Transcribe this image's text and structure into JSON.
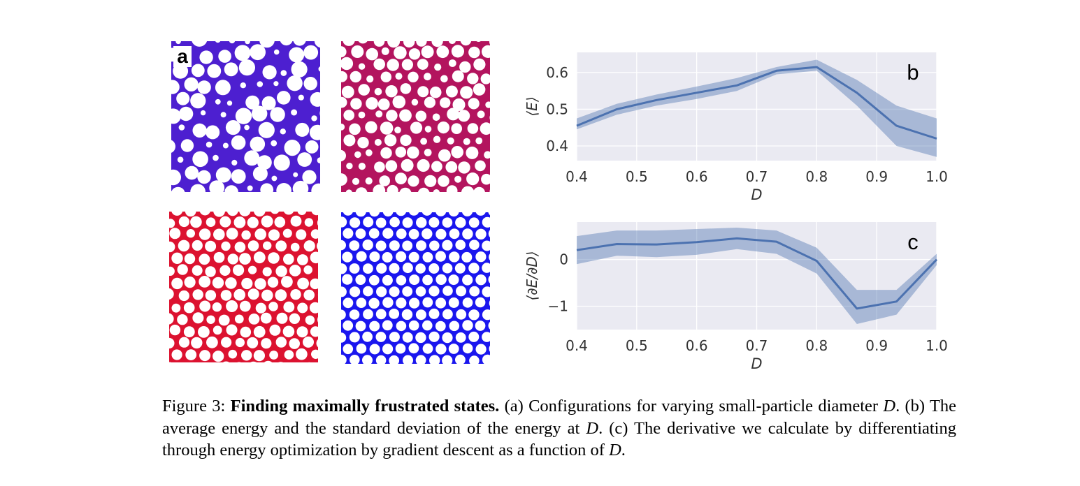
{
  "panel_a": {
    "label": "a",
    "configurations": [
      {
        "name": "top-left",
        "color": "#4d1fd0",
        "background": "#ffffff"
      },
      {
        "name": "top-right",
        "color": "#b3145e",
        "background": "#ffffff"
      },
      {
        "name": "bottom-left",
        "color": "#dc1230",
        "background": "#ffffff"
      },
      {
        "name": "bottom-right",
        "color": "#1a16ee",
        "background": "#ffffff"
      }
    ]
  },
  "chart_data": [
    {
      "type": "line",
      "panel_label": "b",
      "x": [
        0.4,
        0.467,
        0.533,
        0.6,
        0.667,
        0.733,
        0.8,
        0.867,
        0.933,
        1.0
      ],
      "series": [
        {
          "name": "mean",
          "values": [
            0.455,
            0.5,
            0.525,
            0.545,
            0.565,
            0.605,
            0.615,
            0.545,
            0.455,
            0.42
          ]
        }
      ],
      "band_upper": [
        0.475,
        0.515,
        0.54,
        0.562,
        0.585,
        0.615,
        0.635,
        0.58,
        0.51,
        0.475
      ],
      "band_lower": [
        0.445,
        0.485,
        0.51,
        0.528,
        0.55,
        0.595,
        0.605,
        0.51,
        0.4,
        0.37
      ],
      "xlabel": "D",
      "ylabel": "⟨E⟩",
      "xticks": [
        "0.4",
        "0.5",
        "0.6",
        "0.7",
        "0.8",
        "0.9",
        "1.0"
      ],
      "yticks": [
        "0.4",
        "0.5",
        "0.6"
      ],
      "xlim": [
        0.4,
        1.0
      ],
      "ylim": [
        0.36,
        0.655
      ],
      "grid": true,
      "line_color": "#4c72b0",
      "band_color": "#4c72b0",
      "plot_bg": "#eaeaf2"
    },
    {
      "type": "line",
      "panel_label": "c",
      "x": [
        0.4,
        0.467,
        0.533,
        0.6,
        0.667,
        0.733,
        0.8,
        0.867,
        0.933,
        1.0
      ],
      "series": [
        {
          "name": "mean",
          "values": [
            0.2,
            0.33,
            0.32,
            0.37,
            0.45,
            0.38,
            -0.03,
            -1.05,
            -0.9,
            0.0
          ]
        }
      ],
      "band_upper": [
        0.5,
        0.62,
        0.62,
        0.65,
        0.68,
        0.62,
        0.25,
        -0.65,
        -0.65,
        0.12
      ],
      "band_lower": [
        -0.1,
        0.08,
        0.05,
        0.1,
        0.22,
        0.12,
        -0.3,
        -1.38,
        -1.18,
        -0.12
      ],
      "xlabel": "D",
      "ylabel": "⟨∂E/∂D⟩",
      "xticks": [
        "0.4",
        "0.5",
        "0.6",
        "0.7",
        "0.8",
        "0.9",
        "1.0"
      ],
      "yticks": [
        "0",
        "−1"
      ],
      "xlim": [
        0.4,
        1.0
      ],
      "ylim": [
        -1.5,
        0.8
      ],
      "grid": true,
      "line_color": "#4c72b0",
      "band_color": "#4c72b0",
      "plot_bg": "#eaeaf2"
    }
  ],
  "caption": {
    "figure_label": "Figure 3:",
    "title": "Finding maximally frustrated states.",
    "part_a": "(a) Configurations for varying small-particle diameter",
    "var1": "D",
    "part_b": ". (b) The average energy and the standard deviation of the energy at",
    "var2": "D",
    "part_c": ". (c) The derivative we calculate by differentiating through energy optimization by gradient descent as a function of",
    "var3": "D",
    "end": "."
  }
}
